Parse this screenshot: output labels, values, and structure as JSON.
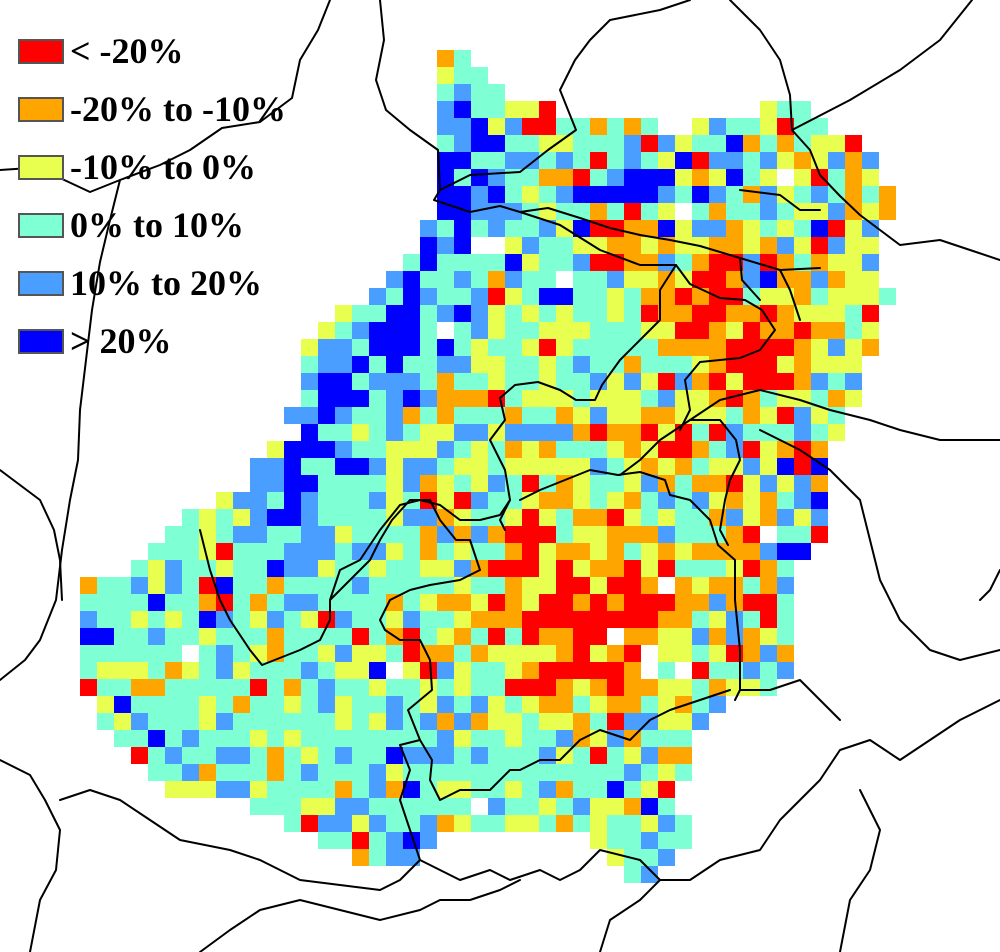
{
  "map": {
    "legend": {
      "items": [
        {
          "label": "< -20%",
          "color": "#ff0000"
        },
        {
          "label": "-20% to -10%",
          "color": "#ffa500"
        },
        {
          "label": "-10% to 0%",
          "color": "#e8ff50"
        },
        {
          "label": "0% to 10%",
          "color": "#7fffd4"
        },
        {
          "label": "10% to 20%",
          "color": "#4a9eff"
        },
        {
          "label": "> 20%",
          "color": "#0000ff"
        }
      ]
    }
  }
}
